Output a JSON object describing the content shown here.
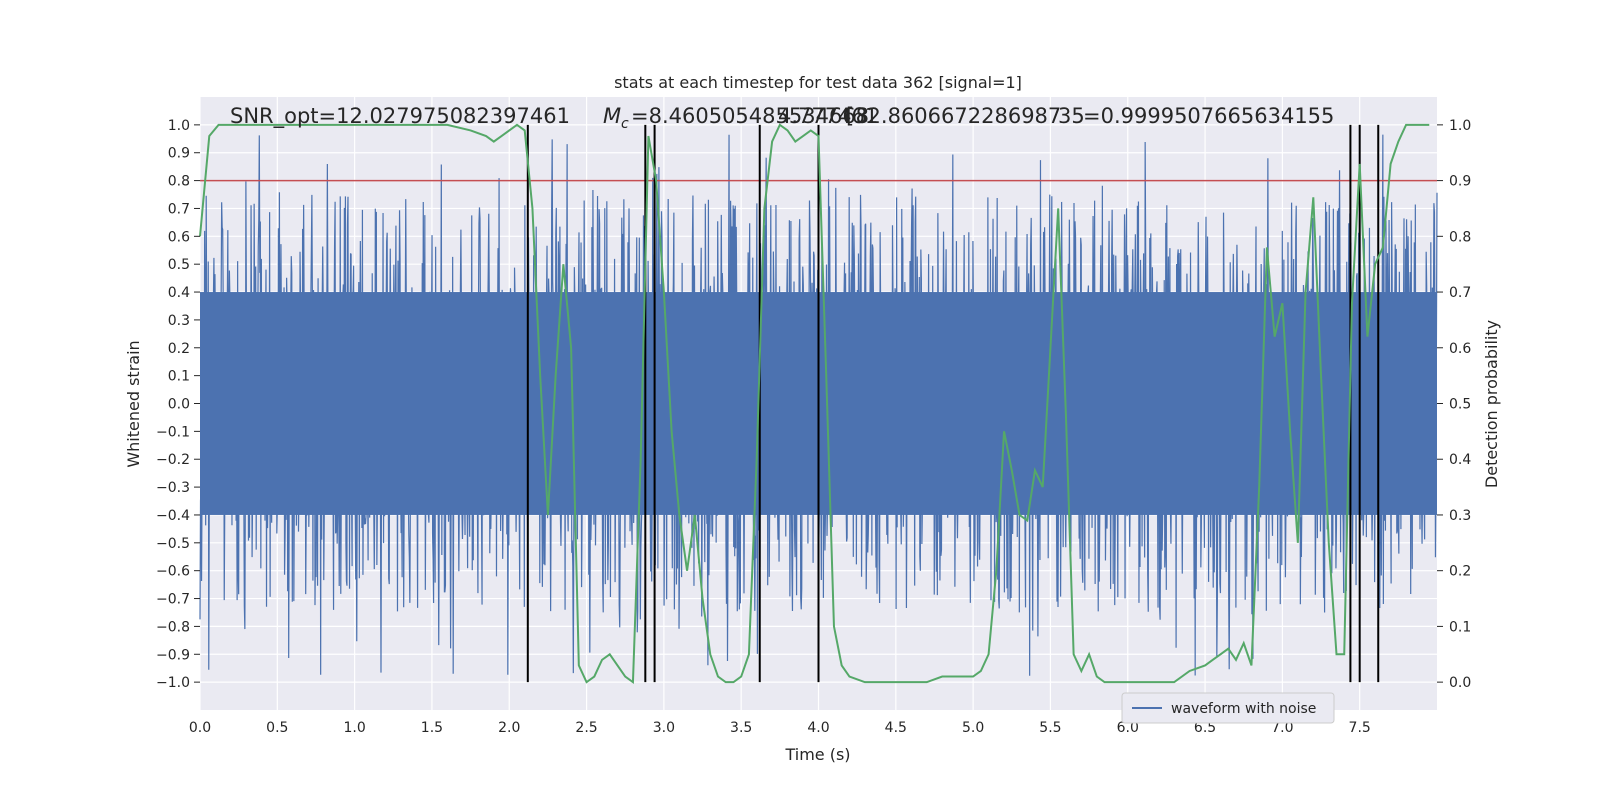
{
  "chart_data": {
    "type": "line",
    "title": "stats at each timestep for test data 362 [signal=1]",
    "xlabel": "Time (s)",
    "ylabel_left": "Whitened strain",
    "ylabel_right": "Detection probability",
    "xlim": [
      0,
      8
    ],
    "ylim_left": [
      -1.1,
      1.1
    ],
    "ylim_right": [
      -0.05,
      1.05
    ],
    "x_ticks": [
      0.0,
      0.5,
      1.0,
      1.5,
      2.0,
      2.5,
      3.0,
      3.5,
      4.0,
      4.5,
      5.0,
      5.5,
      6.0,
      6.5,
      7.0,
      7.5
    ],
    "x_tick_labels": [
      "0.0",
      "0.5",
      "1.0",
      "1.5",
      "2.0",
      "2.5",
      "3.0",
      "3.5",
      "4.0",
      "4.5",
      "5.0",
      "5.5",
      "6.0",
      "6.5",
      "7.0",
      "7.5"
    ],
    "y_left_ticks": [
      1.0,
      0.9,
      0.8,
      0.7,
      0.6,
      0.5,
      0.4,
      0.3,
      0.2,
      0.1,
      0.0,
      -0.1,
      -0.2,
      -0.3,
      -0.4,
      -0.5,
      -0.6,
      -0.7,
      -0.8,
      -0.9,
      -1.0
    ],
    "y_left_tick_labels": [
      "1.0",
      "0.9",
      "0.8",
      "0.7",
      "0.6",
      "0.5",
      "0.4",
      "0.3",
      "0.2",
      "0.1",
      "0.0",
      "−0.1",
      "−0.2",
      "−0.3",
      "−0.4",
      "−0.5",
      "−0.6",
      "−0.7",
      "−0.8",
      "−0.9",
      "−1.0"
    ],
    "y_right_ticks": [
      1.0,
      0.9,
      0.8,
      0.7,
      0.6,
      0.5,
      0.4,
      0.3,
      0.2,
      0.1,
      0.0
    ],
    "y_right_tick_labels": [
      "1.0",
      "0.9",
      "0.8",
      "0.7",
      "0.6",
      "0.5",
      "0.4",
      "0.3",
      "0.2",
      "0.1",
      "0.0"
    ],
    "grid": true,
    "legend": {
      "position": "lower right",
      "entries": [
        "waveform with noise"
      ]
    },
    "annotations": {
      "snr": "SNR_opt=12.027975082397461",
      "mc_symbol": "M",
      "mc_sub": "c",
      "mc_value": "=8.460505485534668",
      "overlap_a": "4.777461",
      "overlap_b": "[32.8606672286987",
      "overlap_c": "35",
      "dt_value": "=0.9999507665634155"
    },
    "threshold": {
      "value": 0.9,
      "axis": "right"
    },
    "vlines": [
      2.12,
      2.88,
      2.94,
      3.62,
      4.0,
      7.44,
      7.5,
      7.62
    ],
    "waveform_envelope": {
      "name": "waveform with noise",
      "dense_band": [
        -0.4,
        0.4
      ],
      "typical_peak": [
        -0.75,
        0.75
      ],
      "max_observed": 0.98,
      "min_observed": -0.98,
      "sample_rate_hz": 400
    },
    "series": [
      {
        "name": "Detection probability",
        "axis": "right",
        "x": [
          0.0,
          0.06,
          0.12,
          0.2,
          0.4,
          0.8,
          1.2,
          1.6,
          1.75,
          1.85,
          1.9,
          1.95,
          2.0,
          2.05,
          2.1,
          2.15,
          2.2,
          2.25,
          2.3,
          2.35,
          2.4,
          2.45,
          2.5,
          2.55,
          2.6,
          2.65,
          2.7,
          2.75,
          2.8,
          2.85,
          2.9,
          2.95,
          3.0,
          3.05,
          3.1,
          3.15,
          3.2,
          3.25,
          3.3,
          3.35,
          3.4,
          3.45,
          3.5,
          3.55,
          3.6,
          3.65,
          3.7,
          3.75,
          3.8,
          3.85,
          3.9,
          3.95,
          4.0,
          4.05,
          4.1,
          4.15,
          4.2,
          4.3,
          4.5,
          4.7,
          4.8,
          5.0,
          5.05,
          5.1,
          5.15,
          5.2,
          5.25,
          5.3,
          5.35,
          5.4,
          5.45,
          5.5,
          5.55,
          5.6,
          5.65,
          5.7,
          5.75,
          5.8,
          5.85,
          5.9,
          5.95,
          6.0,
          6.2,
          6.3,
          6.4,
          6.5,
          6.55,
          6.6,
          6.65,
          6.7,
          6.75,
          6.8,
          6.85,
          6.9,
          6.95,
          7.0,
          7.05,
          7.1,
          7.15,
          7.2,
          7.25,
          7.3,
          7.35,
          7.4,
          7.45,
          7.5,
          7.55,
          7.6,
          7.65,
          7.7,
          7.75,
          7.8,
          7.85,
          7.9,
          7.95
        ],
        "y": [
          0.8,
          0.98,
          1.0,
          1.0,
          1.0,
          1.0,
          1.0,
          1.0,
          0.99,
          0.98,
          0.97,
          0.98,
          0.99,
          1.0,
          0.99,
          0.85,
          0.55,
          0.3,
          0.55,
          0.75,
          0.6,
          0.03,
          0.0,
          0.01,
          0.04,
          0.05,
          0.03,
          0.01,
          0.0,
          0.4,
          0.98,
          0.9,
          0.7,
          0.45,
          0.3,
          0.2,
          0.3,
          0.15,
          0.05,
          0.01,
          0.0,
          0.0,
          0.01,
          0.05,
          0.4,
          0.85,
          0.97,
          1.0,
          0.99,
          0.97,
          0.98,
          0.99,
          0.98,
          0.55,
          0.1,
          0.03,
          0.01,
          0.0,
          0.0,
          0.0,
          0.01,
          0.01,
          0.02,
          0.05,
          0.2,
          0.45,
          0.38,
          0.3,
          0.29,
          0.38,
          0.35,
          0.6,
          0.85,
          0.48,
          0.05,
          0.02,
          0.05,
          0.01,
          0.0,
          0.0,
          0.0,
          0.0,
          0.0,
          0.0,
          0.02,
          0.03,
          0.04,
          0.05,
          0.06,
          0.04,
          0.07,
          0.03,
          0.35,
          0.78,
          0.62,
          0.68,
          0.45,
          0.25,
          0.7,
          0.87,
          0.55,
          0.25,
          0.05,
          0.05,
          0.68,
          0.93,
          0.62,
          0.75,
          0.78,
          0.93,
          0.97,
          1.0,
          1.0,
          1.0,
          1.0
        ]
      },
      {
        "name": "waveform with noise",
        "axis": "left",
        "x": [],
        "y": []
      }
    ]
  },
  "colors": {
    "background": "#ffffff",
    "axes_face": "#eaeaf2",
    "grid": "#ffffff",
    "waveform": "#4c72b0",
    "probability": "#55a868",
    "threshold": "#c44e52",
    "vline": "#000000",
    "text": "#262626"
  }
}
